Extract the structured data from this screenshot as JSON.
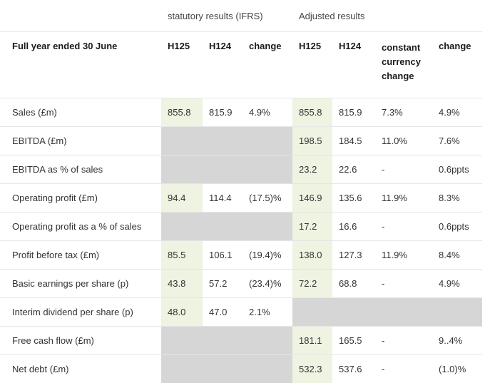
{
  "groups": {
    "statutory": "statutory results (IFRS)",
    "adjusted": "Adjusted results"
  },
  "headers": {
    "row_label": "Full year ended 30 June",
    "stat_h125": "H125",
    "stat_h124": "H124",
    "stat_change": "change",
    "adj_h125": "H125",
    "adj_h124": "H124",
    "adj_ccy": "constant currency change",
    "adj_change": "change"
  },
  "rows": [
    {
      "label": "Sales (£m)",
      "stat": [
        "855.8",
        "815.9",
        "4.9%"
      ],
      "adj": [
        "855.8",
        "815.9",
        "7.3%",
        "4.9%"
      ]
    },
    {
      "label": "EBITDA (£m)",
      "stat": null,
      "adj": [
        "198.5",
        "184.5",
        "11.0%",
        "7.6%"
      ]
    },
    {
      "label": "EBITDA as  % of sales",
      "stat": null,
      "adj": [
        "23.2",
        "22.6",
        "-",
        "0.6ppts"
      ]
    },
    {
      "label": "Operating profit (£m)",
      "stat": [
        "94.4",
        "114.4",
        "(17.5)%"
      ],
      "adj": [
        "146.9",
        "135.6",
        "11.9%",
        "8.3%"
      ]
    },
    {
      "label": "Operating profit as a % of sales",
      "stat": null,
      "adj": [
        "17.2",
        "16.6",
        "-",
        "0.6ppts"
      ]
    },
    {
      "label": "Profit before tax (£m)",
      "stat": [
        "85.5",
        "106.1",
        "(19.4)%"
      ],
      "adj": [
        "138.0",
        "127.3",
        "11.9%",
        "8.4%"
      ]
    },
    {
      "label": "Basic earnings per share (p)",
      "stat": [
        "43.8",
        "57.2",
        "(23.4)%"
      ],
      "adj": [
        "72.2",
        "68.8",
        "-",
        "4.9%"
      ]
    },
    {
      "label": "Interim dividend per share (p)",
      "stat": [
        "48.0",
        "47.0",
        "2.1%"
      ],
      "adj": null
    },
    {
      "label": "Free cash flow (£m)",
      "stat": null,
      "adj": [
        "181.1",
        "165.5",
        "-",
        "9..4%"
      ]
    },
    {
      "label": "Net debt (£m)",
      "stat": null,
      "adj": [
        "532.3",
        "537.6",
        "-",
        "(1.0)%"
      ]
    }
  ]
}
